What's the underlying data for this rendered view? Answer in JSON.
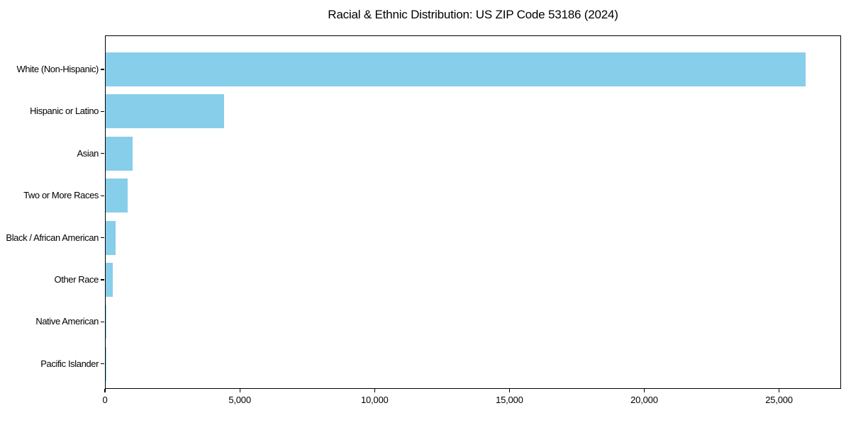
{
  "chart_data": {
    "type": "bar",
    "orientation": "horizontal",
    "title": "Racial & Ethnic Distribution: US ZIP Code 53186 (2024)",
    "categories": [
      "White (Non-Hispanic)",
      "Hispanic or Latino",
      "Asian",
      "Two or More Races",
      "Black / African American",
      "Other Race",
      "Native American",
      "Pacific Islander"
    ],
    "values": [
      26000,
      4400,
      990,
      820,
      360,
      270,
      30,
      10
    ],
    "xlabel": "",
    "ylabel": "",
    "xlim": [
      0,
      27300
    ],
    "x_ticks": {
      "values": [
        0,
        5000,
        10000,
        15000,
        20000,
        25000
      ],
      "labels": [
        "0",
        "5,000",
        "10,000",
        "15,000",
        "20,000",
        "25,000"
      ]
    },
    "bar_color": "#87CEEB",
    "axis_color": "#000000",
    "text_color": "#000000",
    "grid": false,
    "legend": null
  }
}
